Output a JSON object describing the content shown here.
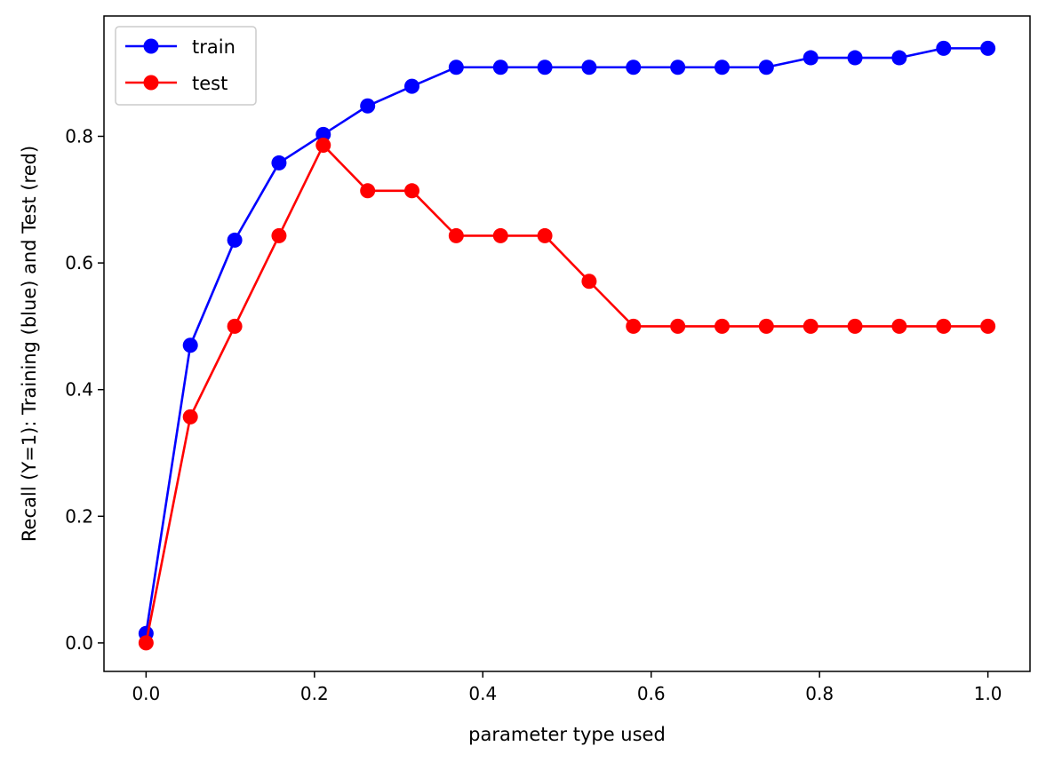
{
  "chart_data": {
    "type": "line",
    "title": "",
    "xlabel": "parameter type used",
    "ylabel": "Recall (Y=1): Training (blue) and Test (red)",
    "xlim": [
      -0.05,
      1.05
    ],
    "ylim": [
      -0.045,
      0.99
    ],
    "x_ticks": [
      0.0,
      0.2,
      0.4,
      0.6,
      0.8,
      1.0
    ],
    "x_tick_labels": [
      "0.0",
      "0.2",
      "0.4",
      "0.6",
      "0.8",
      "1.0"
    ],
    "y_ticks": [
      0.0,
      0.2,
      0.4,
      0.6,
      0.8
    ],
    "y_tick_labels": [
      "0.0",
      "0.2",
      "0.4",
      "0.6",
      "0.8"
    ],
    "grid": false,
    "legend_position": "top-left",
    "x": [
      0.0,
      0.0526,
      0.1053,
      0.1579,
      0.2105,
      0.2632,
      0.3158,
      0.3684,
      0.4211,
      0.4737,
      0.5263,
      0.5789,
      0.6316,
      0.6842,
      0.7368,
      0.7895,
      0.8421,
      0.8947,
      0.9474,
      1.0
    ],
    "series": [
      {
        "name": "train",
        "color": "#0000ff",
        "values": [
          0.015,
          0.47,
          0.636,
          0.758,
          0.803,
          0.848,
          0.879,
          0.909,
          0.909,
          0.909,
          0.909,
          0.909,
          0.909,
          0.909,
          0.909,
          0.924,
          0.924,
          0.924,
          0.939,
          0.939
        ]
      },
      {
        "name": "test",
        "color": "#ff0000",
        "values": [
          0.0,
          0.357,
          0.5,
          0.643,
          0.786,
          0.714,
          0.714,
          0.643,
          0.643,
          0.643,
          0.571,
          0.5,
          0.5,
          0.5,
          0.5,
          0.5,
          0.5,
          0.5,
          0.5,
          0.5
        ]
      }
    ]
  }
}
